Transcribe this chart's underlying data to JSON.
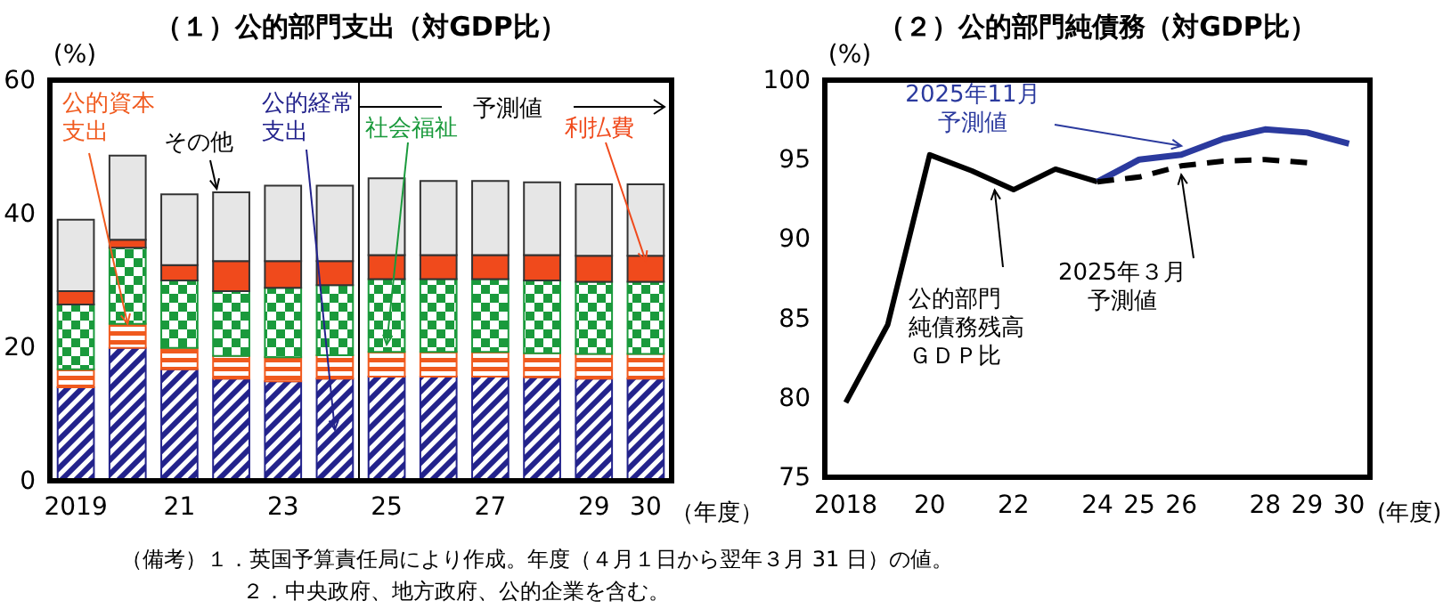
{
  "chart_data": [
    {
      "type": "bar",
      "title": "（１）公的部門支出（対GDP比）",
      "ylabel": "(%)",
      "xlabel": "（年度）",
      "stacked": true,
      "grid": false,
      "categories": [
        "2019",
        null,
        "21",
        null,
        "23",
        null,
        "25",
        null,
        "27",
        null,
        "29",
        "30"
      ],
      "ylim": [
        0,
        60
      ],
      "yticks": [
        0,
        20,
        40,
        60
      ],
      "series": [
        {
          "name": "公的経常支出",
          "color": "#23238c",
          "values": [
            14.0,
            19.9,
            16.7,
            15.3,
            14.9,
            15.3,
            15.6,
            15.6,
            15.6,
            15.5,
            15.3,
            15.3
          ]
        },
        {
          "name": "公的資本支出",
          "color": "#f05a1e",
          "values": [
            2.7,
            3.6,
            3.2,
            3.4,
            3.6,
            3.5,
            3.7,
            3.7,
            3.7,
            3.6,
            3.7,
            3.7
          ]
        },
        {
          "name": "社会福祉",
          "color": "#1a9a3c",
          "values": [
            9.7,
            11.4,
            10.1,
            9.7,
            10.4,
            10.5,
            10.9,
            10.9,
            10.9,
            10.9,
            10.8,
            10.8
          ]
        },
        {
          "name": "利払費",
          "color": "#f04a1c",
          "values": [
            2.0,
            1.2,
            2.3,
            4.5,
            4.0,
            3.6,
            3.6,
            3.6,
            3.6,
            3.8,
            3.9,
            3.9
          ]
        },
        {
          "name": "その他",
          "color": "#e6e6e6",
          "values": [
            10.7,
            12.6,
            10.6,
            10.3,
            11.3,
            11.3,
            11.5,
            11.1,
            11.1,
            10.9,
            10.7,
            10.7
          ]
        }
      ],
      "annotations": [
        "予測値",
        "（備考）１．英国予算責任局により作成。年度（４月１日から翌年３月 31 日）の値。",
        "２．中央政府、地方政府、公的企業を含む。"
      ]
    },
    {
      "type": "line",
      "title": "（２）公的部門純債務（対GDP比）",
      "ylabel": "(%)",
      "xlabel": "(年度)",
      "grid": false,
      "marker": "none",
      "xlim": [
        2017.5,
        2030.5
      ],
      "xticks": [
        2018,
        {
          "value": 2020,
          "label": "20"
        },
        {
          "value": 2022,
          "label": "22"
        },
        {
          "value": 2024,
          "label": "24"
        },
        {
          "value": 2025,
          "label": "25"
        },
        {
          "value": 2026,
          "label": "26"
        },
        {
          "value": 2028,
          "label": "28"
        },
        {
          "value": 2029,
          "label": "29"
        },
        {
          "value": 2030,
          "label": "30"
        }
      ],
      "ylim": [
        75,
        100
      ],
      "yticks": [
        75,
        80,
        85,
        90,
        95,
        100
      ],
      "series": [
        {
          "name": "公的部門純債務残高ＧＤＰ比",
          "color": "#000000",
          "line_style": "solid",
          "x": [
            2018,
            2019,
            2020,
            2021,
            2022,
            2023,
            2024
          ],
          "values": [
            79.7,
            84.6,
            95.3,
            94.3,
            93.1,
            94.4,
            93.6
          ]
        },
        {
          "name": "2025年11月予測値",
          "color": "#2b3a9e",
          "line_style": "solid",
          "x": [
            2024,
            2025,
            2026,
            2027,
            2028,
            2029,
            2030
          ],
          "values": [
            93.6,
            95.0,
            95.3,
            96.3,
            96.9,
            96.7,
            96.0
          ]
        },
        {
          "name": "2025年３月予測値",
          "color": "#000000",
          "line_style": "dashed",
          "x": [
            2024,
            2025,
            2026,
            2027,
            2028,
            2029
          ],
          "values": [
            93.6,
            93.9,
            94.6,
            94.9,
            95.0,
            94.8
          ]
        }
      ]
    }
  ]
}
